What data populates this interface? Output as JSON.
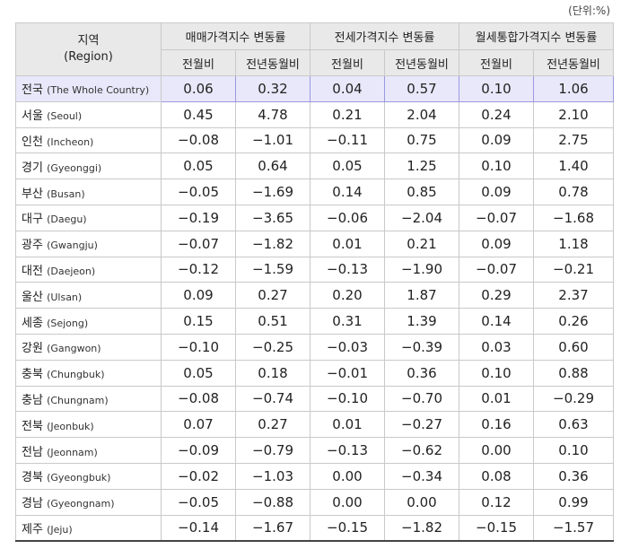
{
  "unit_label": "(단위:%)",
  "header": {
    "region_ko": "지역",
    "region_en": "(Region)",
    "groups": [
      "매매가격지수 변동률",
      "전세가격지수 변동률",
      "월세통합가격지수 변동률"
    ],
    "sub": [
      "전월비",
      "전년동월비"
    ]
  },
  "rows": [
    {
      "ko": "전국",
      "en": "(The Whole Country)",
      "v": [
        "0.06",
        "0.32",
        "0.04",
        "0.57",
        "0.10",
        "1.06"
      ]
    },
    {
      "ko": "서울",
      "en": "(Seoul)",
      "v": [
        "0.45",
        "4.78",
        "0.21",
        "2.04",
        "0.24",
        "2.10"
      ]
    },
    {
      "ko": "인천",
      "en": "(Incheon)",
      "v": [
        "−0.08",
        "−1.01",
        "−0.11",
        "0.75",
        "0.09",
        "2.75"
      ]
    },
    {
      "ko": "경기",
      "en": "(Gyeonggi)",
      "v": [
        "0.05",
        "0.64",
        "0.05",
        "1.25",
        "0.10",
        "1.40"
      ]
    },
    {
      "ko": "부산",
      "en": "(Busan)",
      "v": [
        "−0.05",
        "−1.69",
        "0.14",
        "0.85",
        "0.09",
        "0.78"
      ]
    },
    {
      "ko": "대구",
      "en": "(Daegu)",
      "v": [
        "−0.19",
        "−3.65",
        "−0.06",
        "−2.04",
        "−0.07",
        "−1.68"
      ]
    },
    {
      "ko": "광주",
      "en": "(Gwangju)",
      "v": [
        "−0.07",
        "−1.82",
        "0.01",
        "0.21",
        "0.09",
        "1.18"
      ]
    },
    {
      "ko": "대전",
      "en": "(Daejeon)",
      "v": [
        "−0.12",
        "−1.59",
        "−0.13",
        "−1.90",
        "−0.07",
        "−0.21"
      ]
    },
    {
      "ko": "울산",
      "en": "(Ulsan)",
      "v": [
        "0.09",
        "0.27",
        "0.20",
        "1.87",
        "0.29",
        "2.37"
      ]
    },
    {
      "ko": "세종",
      "en": "(Sejong)",
      "v": [
        "0.15",
        "0.51",
        "0.31",
        "1.39",
        "0.14",
        "0.26"
      ]
    },
    {
      "ko": "강원",
      "en": "(Gangwon)",
      "v": [
        "−0.10",
        "−0.25",
        "−0.03",
        "−0.39",
        "0.03",
        "0.60"
      ]
    },
    {
      "ko": "충북",
      "en": "(Chungbuk)",
      "v": [
        "0.05",
        "0.18",
        "−0.01",
        "0.36",
        "0.10",
        "0.88"
      ]
    },
    {
      "ko": "충남",
      "en": "(Chungnam)",
      "v": [
        "−0.08",
        "−0.74",
        "−0.10",
        "−0.70",
        "0.01",
        "−0.29"
      ]
    },
    {
      "ko": "전북",
      "en": "(Jeonbuk)",
      "v": [
        "0.07",
        "0.27",
        "0.01",
        "−0.27",
        "0.16",
        "0.63"
      ]
    },
    {
      "ko": "전남",
      "en": "(Jeonnam)",
      "v": [
        "−0.09",
        "−0.79",
        "−0.13",
        "−0.62",
        "0.00",
        "0.10"
      ]
    },
    {
      "ko": "경북",
      "en": "(Gyeongbuk)",
      "v": [
        "−0.02",
        "−1.03",
        "0.00",
        "−0.34",
        "0.08",
        "0.36"
      ]
    },
    {
      "ko": "경남",
      "en": "(Gyeongnam)",
      "v": [
        "−0.05",
        "−0.88",
        "0.00",
        "0.00",
        "0.12",
        "0.99"
      ]
    },
    {
      "ko": "제주",
      "en": "(Jeju)",
      "v": [
        "−0.14",
        "−1.67",
        "−0.15",
        "−1.82",
        "−0.15",
        "−1.57"
      ]
    }
  ]
}
